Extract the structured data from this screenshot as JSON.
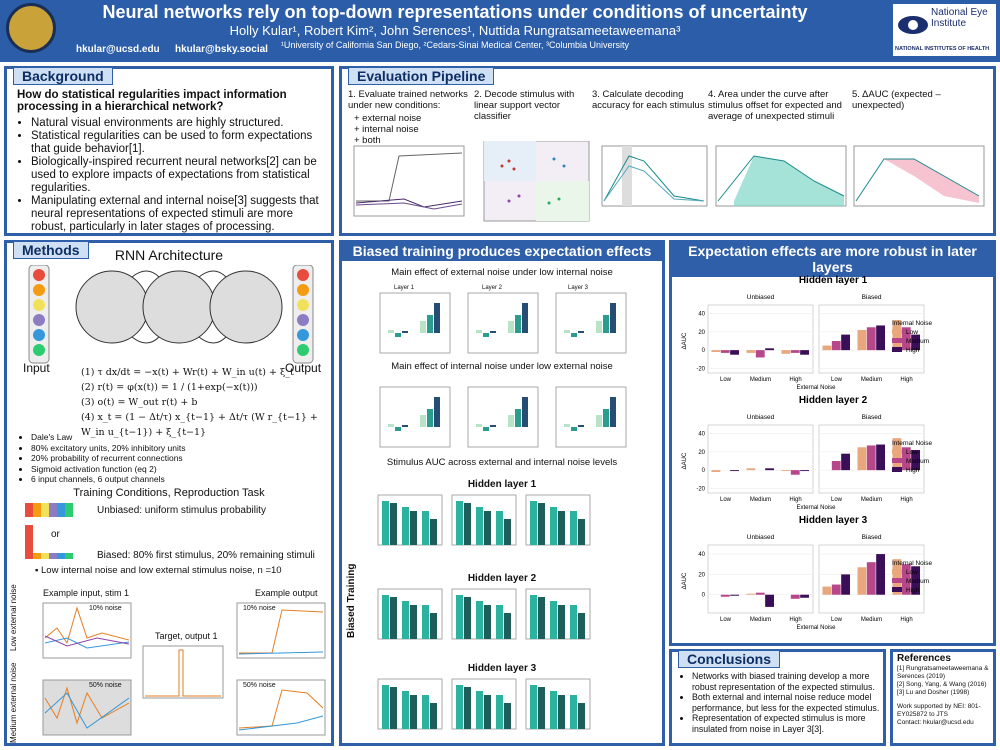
{
  "header": {
    "title": "Neural networks rely on top-down representations under conditions of uncertainty",
    "authors": "Holly Kular¹, Robert Kim², John Serences¹, Nuttida Rungratsameetaweemana³",
    "affiliations": "¹University of California San Diego, ²Cedars-Sinai Medical Center, ³Columbia University",
    "email": "hkular@ucsd.edu",
    "bsky": "hkular@bsky.social",
    "nei": "National Eye Institute",
    "nih": "NATIONAL INSTITUTES OF HEALTH"
  },
  "background": {
    "title": "Background",
    "question": "How do statistical regularities impact information processing in a hierarchical network?",
    "bullets": [
      "Natural visual environments are highly structured.",
      "Statistical regularities can be used to form expectations that guide behavior[1].",
      "Biologically-inspired recurrent neural networks[2] can be used to explore impacts of expectations from statistical regularities.",
      "Manipulating external and internal noise[3] suggests that neural representations of expected stimuli are more robust, particularly in later stages of processing."
    ]
  },
  "pipeline": {
    "title": "Evaluation Pipeline",
    "steps": [
      "1. Evaluate trained networks under new conditions:",
      "2. Decode stimulus with linear support vector classifier",
      "3. Calculate decoding accuracy for each stimulus",
      "4. Area under the curve after stimulus offset for expected and average of unexpected stimuli",
      "5. ΔAUC (expected – unexpected)"
    ],
    "conditions": [
      "+ external noise",
      "+ internal noise",
      "+ both"
    ]
  },
  "methods": {
    "title": "Methods",
    "arch": "RNN Architecture",
    "input": "Input",
    "output": "Output",
    "equations": [
      "(1) τ dx/dt = −x(t) + Wr(t) + W_in u(t) + ξ_t",
      "(2) r(t) = φ(x(t)) = 1 / (1+exp(−x(t)))",
      "(3) o(t) = W_out r(t) + b",
      "(4) x_t = (1 − Δt/τ) x_{t−1} + Δt/τ (W r_{t−1} + W_in u_{t−1}) + ξ_{t−1}"
    ],
    "bullets": [
      "Dale's Law",
      "80% excitatory units, 20% inhibitory units",
      "20% probability of recurrent connections",
      "Sigmoid activation function (eq 2)",
      "6 input channels, 6 output channels"
    ],
    "training": "Training Conditions, Reproduction Task",
    "unbiased": "Unbiased: uniform stimulus probability",
    "or": "or",
    "biased": "Biased: 80%  first stimulus, 20% remaining stimuli",
    "noise": "Low internal noise and low external stimulus noise, n =10",
    "ex_input": "Example input, stim 1",
    "target": "Target, output 1",
    "ex_output": "Example output",
    "low_ext": "Low external noise",
    "med_ext": "Medium external noise",
    "n10": "10% noise",
    "n50": "50% noise"
  },
  "biased": {
    "title": "Biased training produces expectation effects",
    "sub1": "Main effect of external noise under low internal noise",
    "sub2": "Main effect of internal noise under low external noise",
    "sub3": "Stimulus AUC across external and internal noise levels",
    "layers": [
      "Layer 1",
      "Layer 2",
      "Layer 3"
    ],
    "hidden": [
      "Hidden layer 1",
      "Hidden layer 2",
      "Hidden layer 3"
    ],
    "side": "Biased Training"
  },
  "expect": {
    "title": "Expectation effects are more robust in later layers"
  },
  "chart_data": [
    {
      "type": "bar",
      "title": "Hidden layer 1",
      "panels": [
        "Unbiased",
        "Biased"
      ],
      "categories": [
        "Low",
        "Medium",
        "High",
        "Low",
        "Medium",
        "High"
      ],
      "xlabel": "External Noise",
      "ylabel": "ΔAUC",
      "legend_title": "Internal Noise",
      "ylim": [
        -25,
        45
      ],
      "yticks": [
        -20,
        0,
        20,
        40
      ],
      "series": [
        {
          "name": "Low",
          "color": "#e8a77c",
          "values": [
            -2,
            -3,
            -4,
            5,
            22,
            33
          ]
        },
        {
          "name": "Medium",
          "color": "#b5478a",
          "values": [
            -3,
            -8,
            -3,
            10,
            25,
            25
          ]
        },
        {
          "name": "High",
          "color": "#3b0f58",
          "values": [
            -5,
            2,
            -5,
            17,
            27,
            17
          ]
        }
      ]
    },
    {
      "type": "bar",
      "title": "Hidden layer 2",
      "panels": [
        "Unbiased",
        "Biased"
      ],
      "categories": [
        "Low",
        "Medium",
        "High",
        "Low",
        "Medium",
        "High"
      ],
      "xlabel": "External Noise",
      "ylabel": "ΔAUC",
      "legend_title": "Internal Noise",
      "ylim": [
        -25,
        45
      ],
      "yticks": [
        -20,
        0,
        20,
        40
      ],
      "series": [
        {
          "name": "Low",
          "color": "#e8a77c",
          "values": [
            -2,
            2,
            -1,
            0,
            25,
            35
          ]
        },
        {
          "name": "Medium",
          "color": "#b5478a",
          "values": [
            0,
            0,
            -5,
            10,
            27,
            25
          ]
        },
        {
          "name": "High",
          "color": "#3b0f58",
          "values": [
            -1,
            2,
            -1,
            18,
            28,
            22
          ]
        }
      ]
    },
    {
      "type": "bar",
      "title": "Hidden layer 3",
      "panels": [
        "Unbiased",
        "Biased"
      ],
      "categories": [
        "Low",
        "Medium",
        "High",
        "Low",
        "Medium",
        "High"
      ],
      "xlabel": "External Noise",
      "ylabel": "ΔAUC",
      "legend_title": "Internal Noise",
      "ylim": [
        -18,
        45
      ],
      "yticks": [
        0,
        20,
        40
      ],
      "series": [
        {
          "name": "Low",
          "color": "#e8a77c",
          "values": [
            0,
            1,
            0,
            8,
            27,
            35
          ]
        },
        {
          "name": "Medium",
          "color": "#b5478a",
          "values": [
            -2,
            2,
            -4,
            10,
            32,
            30
          ]
        },
        {
          "name": "High",
          "color": "#3b0f58",
          "values": [
            -1,
            -12,
            -3,
            20,
            40,
            28
          ]
        }
      ]
    }
  ],
  "conclusions": {
    "title": "Conclusions",
    "bullets": [
      "Networks with biased training develop a more robust representation of the expected stimulus.",
      "Both external and internal noise reduce model performance, but less for the expected stimulus.",
      "Representation of expected stimulus is more insulated from noise in Layer 3[3]."
    ]
  },
  "references": {
    "title": "References",
    "items": [
      "[1] Rungratsameetaweemana & Serences (2019)",
      "[2] Song, Yang, & Wang (2016)",
      "[3] Lu and Dosher (1998)"
    ],
    "support": "Work supported by NEI: 801-EY025872 to JTS",
    "contact": "Contact: hkular@ucsd.edu"
  }
}
